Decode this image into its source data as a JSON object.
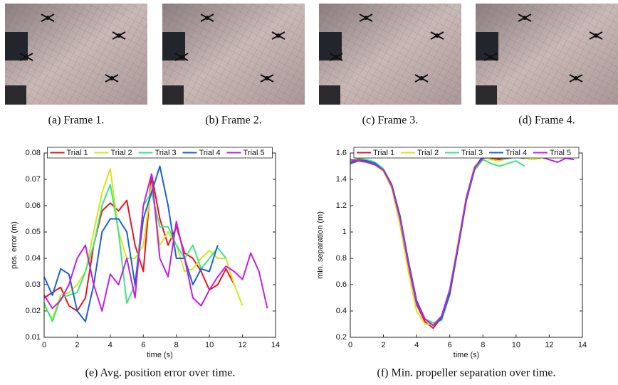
{
  "figures": [
    {
      "caption": "(a) Frame 1."
    },
    {
      "caption": "(b) Frame 2."
    },
    {
      "caption": "(c) Frame 3."
    },
    {
      "caption": "(d) Frame 4."
    }
  ],
  "chart_data": [
    {
      "type": "line",
      "caption": "(e) Avg. position error over time.",
      "xlabel": "time (s)",
      "ylabel": "pos. error (m)",
      "xlim": [
        0,
        14
      ],
      "ylim": [
        0.01,
        0.08
      ],
      "xticks": [
        0,
        2,
        4,
        6,
        8,
        10,
        12,
        14
      ],
      "yticks": [
        0.01,
        0.02,
        0.03,
        0.04,
        0.05,
        0.06,
        0.07,
        0.08
      ],
      "legend": "top",
      "series": [
        {
          "name": "Trial 1",
          "color": "#e8141a",
          "x": [
            0,
            0.5,
            1,
            1.5,
            2,
            2.5,
            3,
            3.5,
            4,
            4.5,
            5,
            5.5,
            6,
            6.5,
            7,
            7.5,
            8,
            8.5,
            9,
            9.5,
            10,
            10.5,
            11,
            11.5
          ],
          "values": [
            0.025,
            0.027,
            0.029,
            0.022,
            0.02,
            0.025,
            0.045,
            0.058,
            0.061,
            0.058,
            0.062,
            0.045,
            0.035,
            0.072,
            0.055,
            0.045,
            0.052,
            0.042,
            0.04,
            0.035,
            0.028,
            0.03,
            0.036,
            0.03
          ]
        },
        {
          "name": "Trial 2",
          "color": "#d4e61e",
          "x": [
            0,
            0.5,
            1,
            1.5,
            2,
            2.5,
            3,
            3.5,
            4,
            4.5,
            5,
            5.5,
            6,
            6.5,
            7,
            7.5,
            8,
            8.5,
            9,
            9.5,
            10,
            10.5,
            11,
            11.5,
            12
          ],
          "values": [
            0.022,
            0.017,
            0.026,
            0.027,
            0.03,
            0.035,
            0.05,
            0.065,
            0.074,
            0.05,
            0.04,
            0.04,
            0.045,
            0.068,
            0.045,
            0.05,
            0.045,
            0.035,
            0.036,
            0.04,
            0.043,
            0.04,
            0.04,
            0.03,
            0.022
          ]
        },
        {
          "name": "Trial 3",
          "color": "#3de67c",
          "x": [
            0,
            0.5,
            1,
            1.5,
            2,
            2.5,
            3,
            3.5,
            4,
            4.5,
            5,
            5.5,
            6,
            6.5,
            7,
            7.5,
            8,
            8.5,
            9,
            9.5,
            10,
            10.5,
            11
          ],
          "values": [
            0.023,
            0.016,
            0.025,
            0.026,
            0.027,
            0.035,
            0.045,
            0.06,
            0.068,
            0.05,
            0.023,
            0.03,
            0.06,
            0.065,
            0.052,
            0.052,
            0.045,
            0.04,
            0.045,
            0.036,
            0.04,
            0.044,
            0.04
          ]
        },
        {
          "name": "Trial 4",
          "color": "#1b5fd4",
          "x": [
            0,
            0.5,
            1,
            1.5,
            2,
            2.5,
            3,
            3.5,
            4,
            4.5,
            5,
            5.5,
            6,
            6.5,
            7,
            7.5,
            8,
            8.5,
            9,
            9.5,
            10,
            10.5
          ],
          "values": [
            0.033,
            0.026,
            0.036,
            0.034,
            0.02,
            0.016,
            0.03,
            0.05,
            0.055,
            0.055,
            0.05,
            0.03,
            0.055,
            0.065,
            0.075,
            0.06,
            0.04,
            0.04,
            0.03,
            0.036,
            0.035,
            0.045
          ]
        },
        {
          "name": "Trial 5",
          "color": "#c41ee4",
          "x": [
            0,
            0.5,
            1,
            1.5,
            2,
            2.5,
            3,
            3.5,
            4,
            4.5,
            5,
            5.5,
            6,
            6.5,
            7,
            7.5,
            8,
            8.5,
            9,
            9.5,
            10,
            10.5,
            11,
            11.5,
            12,
            12.5,
            13,
            13.5
          ],
          "values": [
            0.026,
            0.021,
            0.024,
            0.03,
            0.04,
            0.045,
            0.03,
            0.02,
            0.034,
            0.03,
            0.04,
            0.025,
            0.06,
            0.072,
            0.04,
            0.033,
            0.054,
            0.04,
            0.025,
            0.022,
            0.028,
            0.033,
            0.037,
            0.035,
            0.032,
            0.042,
            0.035,
            0.021
          ]
        }
      ]
    },
    {
      "type": "line",
      "caption": "(f) Min. propeller separation over time.",
      "xlabel": "time (s)",
      "ylabel": "min. separation (m)",
      "xlim": [
        0,
        14
      ],
      "ylim": [
        0.2,
        1.6
      ],
      "xticks": [
        0,
        2,
        4,
        6,
        8,
        10,
        12,
        14
      ],
      "yticks": [
        0.2,
        0.4,
        0.6,
        0.8,
        1,
        1.2,
        1.4,
        1.6
      ],
      "legend": "top",
      "series": [
        {
          "name": "Trial 1",
          "color": "#e8141a",
          "x": [
            0,
            0.5,
            1,
            1.5,
            2,
            2.5,
            3,
            3.5,
            4,
            4.5,
            5,
            5.5,
            6,
            6.5,
            7,
            7.5,
            8,
            8.5,
            9,
            9.5,
            10,
            10.5,
            11,
            11.5
          ],
          "values": [
            1.53,
            1.55,
            1.54,
            1.52,
            1.47,
            1.35,
            1.1,
            0.75,
            0.45,
            0.32,
            0.27,
            0.35,
            0.55,
            0.9,
            1.25,
            1.48,
            1.57,
            1.56,
            1.55,
            1.57,
            1.58,
            1.58,
            1.57,
            1.57
          ]
        },
        {
          "name": "Trial 2",
          "color": "#d4e61e",
          "x": [
            0,
            0.5,
            1,
            1.5,
            2,
            2.5,
            3,
            3.5,
            4,
            4.5,
            5,
            5.5,
            6,
            6.5,
            7,
            7.5,
            8,
            8.5,
            9,
            9.5,
            10,
            10.5,
            11,
            11.5
          ],
          "values": [
            1.52,
            1.54,
            1.53,
            1.51,
            1.46,
            1.33,
            1.05,
            0.7,
            0.4,
            0.3,
            0.3,
            0.36,
            0.57,
            0.92,
            1.27,
            1.5,
            1.57,
            1.55,
            1.54,
            1.56,
            1.57,
            1.56,
            1.55,
            1.56
          ]
        },
        {
          "name": "Trial 3",
          "color": "#3de67c",
          "x": [
            0,
            0.5,
            1,
            1.5,
            2,
            2.5,
            3,
            3.5,
            4,
            4.5,
            5,
            5.5,
            6,
            6.5,
            7,
            7.5,
            8,
            8.5,
            9,
            9.5,
            10,
            10.5
          ],
          "values": [
            1.54,
            1.56,
            1.55,
            1.53,
            1.48,
            1.36,
            1.12,
            0.78,
            0.48,
            0.34,
            0.31,
            0.33,
            0.52,
            0.88,
            1.24,
            1.47,
            1.55,
            1.52,
            1.5,
            1.52,
            1.54,
            1.5
          ]
        },
        {
          "name": "Trial 4",
          "color": "#1b5fd4",
          "x": [
            0,
            0.5,
            1,
            1.5,
            2,
            2.5,
            3,
            3.5,
            4,
            4.5,
            5,
            5.5,
            6,
            6.5,
            7,
            7.5,
            8,
            8.5,
            9,
            9.5,
            10,
            10.5
          ],
          "values": [
            1.52,
            1.54,
            1.54,
            1.52,
            1.47,
            1.36,
            1.12,
            0.78,
            0.48,
            0.34,
            0.29,
            0.34,
            0.53,
            0.88,
            1.24,
            1.48,
            1.58,
            1.57,
            1.56,
            1.56,
            1.57,
            1.56
          ]
        },
        {
          "name": "Trial 5",
          "color": "#c41ee4",
          "x": [
            0,
            0.5,
            1,
            1.5,
            2,
            2.5,
            3,
            3.5,
            4,
            4.5,
            5,
            5.5,
            6,
            6.5,
            7,
            7.5,
            8,
            8.5,
            9,
            9.5,
            10,
            10.5,
            11,
            11.5,
            12,
            12.5,
            13,
            13.5
          ],
          "values": [
            1.55,
            1.54,
            1.53,
            1.51,
            1.47,
            1.35,
            1.1,
            0.76,
            0.46,
            0.34,
            0.29,
            0.36,
            0.56,
            0.9,
            1.26,
            1.49,
            1.56,
            1.57,
            1.58,
            1.56,
            1.58,
            1.6,
            1.59,
            1.57,
            1.55,
            1.53,
            1.56,
            1.55
          ]
        }
      ]
    }
  ]
}
